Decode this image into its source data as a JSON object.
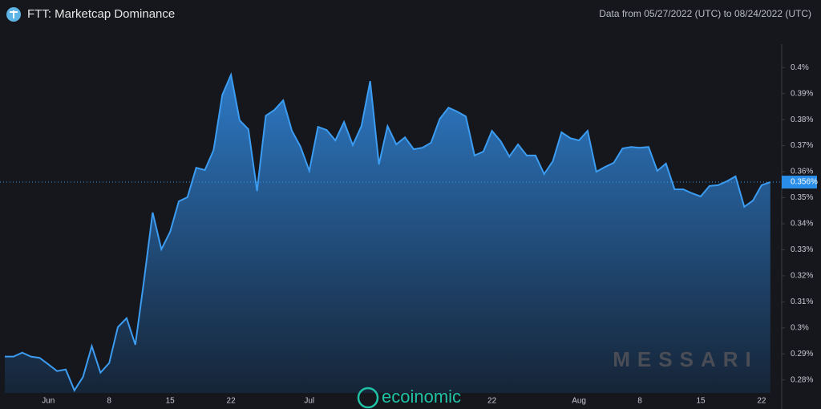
{
  "chart_data": {
    "type": "area",
    "title": "FTT: Marketcap Dominance",
    "subtitle": "Data from 05/27/2022 (UTC) to 08/24/2022 (UTC)",
    "categories": [
      null,
      null,
      null,
      null,
      null,
      "Jun",
      null,
      null,
      null,
      null,
      null,
      null,
      "8",
      null,
      null,
      null,
      null,
      null,
      null,
      "15",
      null,
      null,
      null,
      null,
      null,
      null,
      "22",
      null,
      null,
      null,
      null,
      null,
      null,
      null,
      null,
      "Jul",
      null,
      null,
      null,
      null,
      null,
      null,
      null,
      null,
      null,
      null,
      null,
      null,
      null,
      null,
      null,
      null,
      null,
      null,
      null,
      null,
      "22",
      null,
      null,
      null,
      null,
      null,
      null,
      null,
      null,
      null,
      "Aug",
      null,
      null,
      null,
      null,
      null,
      null,
      "8",
      null,
      null,
      null,
      null,
      null,
      null,
      "15",
      null,
      null,
      null,
      null,
      null,
      null,
      "22",
      null
    ],
    "values": [
      0.289,
      0.289,
      0.2905,
      0.289,
      0.2885,
      0.286,
      0.2834,
      0.284,
      0.276,
      0.2812,
      0.293,
      0.2828,
      0.2865,
      0.3003,
      0.3037,
      0.2935,
      0.3182,
      0.3443,
      0.3302,
      0.3369,
      0.3486,
      0.3502,
      0.3615,
      0.3606,
      0.3683,
      0.3895,
      0.3972,
      0.3797,
      0.3763,
      0.3526,
      0.3815,
      0.3837,
      0.3874,
      0.3757,
      0.3695,
      0.3603,
      0.3772,
      0.376,
      0.372,
      0.3791,
      0.3702,
      0.3775,
      0.3948,
      0.3628,
      0.3775,
      0.3705,
      0.3732,
      0.3686,
      0.3692,
      0.3711,
      0.3803,
      0.3846,
      0.3831,
      0.3812,
      0.3662,
      0.3677,
      0.3757,
      0.3717,
      0.3658,
      0.3705,
      0.3662,
      0.3662,
      0.3591,
      0.364,
      0.3751,
      0.3729,
      0.372,
      0.3757,
      0.36,
      0.3618,
      0.3634,
      0.3689,
      0.3695,
      0.3692,
      0.3695,
      0.3603,
      0.3631,
      0.3532,
      0.3532,
      0.3517,
      0.3505,
      0.3545,
      0.3548,
      0.3563,
      0.3582,
      0.3465,
      0.3489,
      0.3548,
      0.356
    ],
    "color": "#3b9cf2",
    "ylim": [
      0.275,
      0.409
    ],
    "yticks": [
      {
        "value": 0.28,
        "label": "0.28%"
      },
      {
        "value": 0.29,
        "label": "0.29%"
      },
      {
        "value": 0.3,
        "label": "0.3%"
      },
      {
        "value": 0.31,
        "label": "0.31%"
      },
      {
        "value": 0.32,
        "label": "0.32%"
      },
      {
        "value": 0.33,
        "label": "0.33%"
      },
      {
        "value": 0.34,
        "label": "0.34%"
      },
      {
        "value": 0.35,
        "label": "0.35%"
      },
      {
        "value": 0.36,
        "label": "0.36%"
      },
      {
        "value": 0.37,
        "label": "0.37%"
      },
      {
        "value": 0.38,
        "label": "0.38%"
      },
      {
        "value": 0.39,
        "label": "0.39%"
      },
      {
        "value": 0.4,
        "label": "0.4%"
      }
    ],
    "last_value": {
      "value": 0.356,
      "label": "0.356%"
    },
    "watermarks": [
      "MESSARI",
      "ecoinomic"
    ]
  }
}
